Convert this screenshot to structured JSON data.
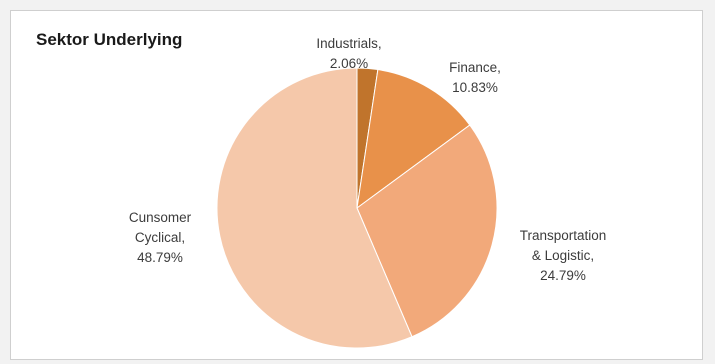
{
  "chart_data": {
    "type": "pie",
    "title": "Sektor Underlying",
    "slices": [
      {
        "name": "Industrials",
        "value": 2.06,
        "label_lines": [
          "Industrials,",
          "2.06%"
        ],
        "color": "#c0742c"
      },
      {
        "name": "Finance",
        "value": 10.83,
        "label_lines": [
          "Finance,",
          "10.83%"
        ],
        "color": "#e8914a"
      },
      {
        "name": "Transportation & Logistic",
        "value": 24.79,
        "label_lines": [
          "Transportation",
          "& Logistic,",
          "24.79%"
        ],
        "color": "#f2a97a"
      },
      {
        "name": "Cunsomer Cyclical",
        "value": 48.79,
        "label_lines": [
          "Cunsomer",
          "Cyclical,",
          "48.79%"
        ],
        "color": "#f5c8aa"
      }
    ],
    "start_angle": "12 o'clock",
    "direction": "clockwise",
    "legend": "none"
  }
}
